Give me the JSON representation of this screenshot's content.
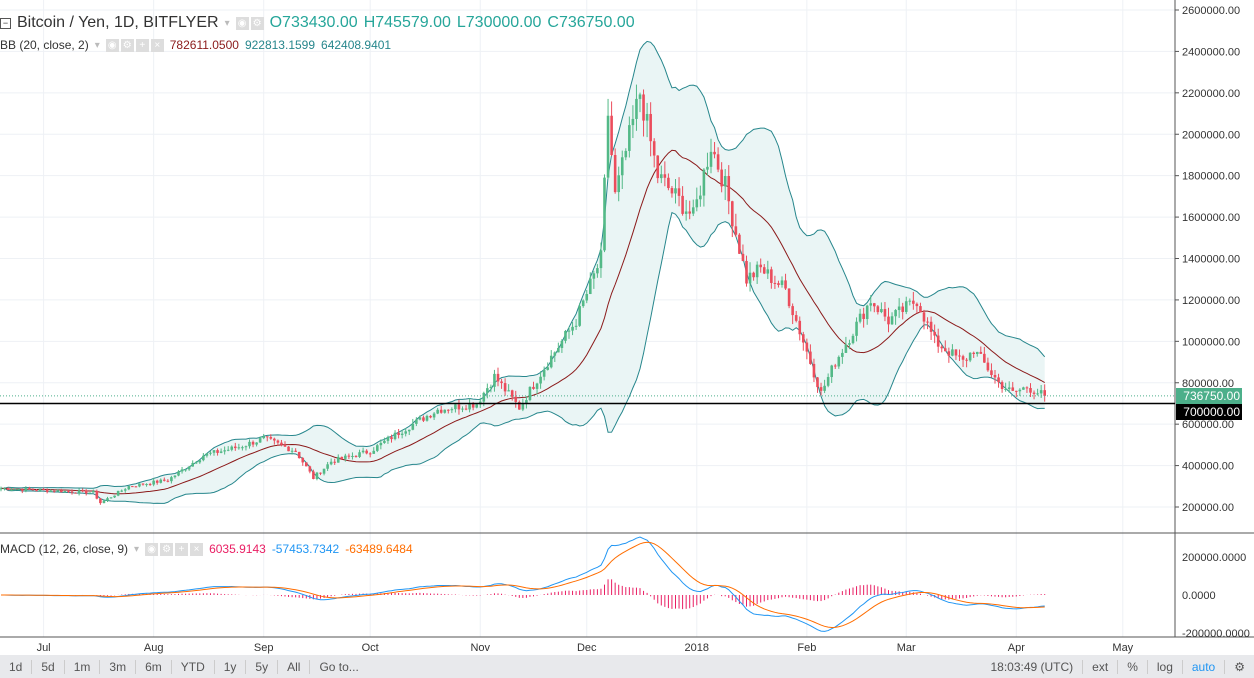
{
  "header": {
    "title": "Bitcoin / Yen, 1D, BITFLYER",
    "o": "O733430.00",
    "h": "H745579.00",
    "l": "L730000.00",
    "c": "C736750.00"
  },
  "bb": {
    "label": "BB (20, close, 2)",
    "basis": "782611.0500",
    "upper": "922813.1599",
    "lower": "642408.9401"
  },
  "macd": {
    "label": "MACD (12, 26, close, 9)",
    "hist": "6035.9143",
    "macd": "-57453.7342",
    "signal": "-63489.6484"
  },
  "price_labels": {
    "last": "736750.00",
    "line": "700000.00"
  },
  "toolbar": {
    "ranges": [
      "1d",
      "5d",
      "1m",
      "3m",
      "6m",
      "YTD",
      "1y",
      "5y",
      "All",
      "Go to..."
    ],
    "time": "18:03:49 (UTC)",
    "right": [
      "ext",
      "%",
      "log",
      "auto"
    ]
  },
  "colors": {
    "up": "#53b987",
    "down": "#eb4d5c",
    "bb_band": "#26868c",
    "bb_basis": "#8b1a1a",
    "bb_fill": "#eaf5f5",
    "macd": "#2196f3",
    "signal": "#ff6d00",
    "hist": "#e91e63"
  },
  "chart_data": {
    "type": "candlestick",
    "title": "Bitcoin / Yen, 1D, BITFLYER",
    "start_date": "2017-06-19",
    "close_anchors": [
      [
        0,
        290000
      ],
      [
        26,
        270000
      ],
      [
        28,
        220000
      ],
      [
        36,
        300000
      ],
      [
        47,
        330000
      ],
      [
        57,
        450000
      ],
      [
        67,
        490000
      ],
      [
        74,
        530000
      ],
      [
        83,
        470000
      ],
      [
        88,
        340000
      ],
      [
        93,
        420000
      ],
      [
        104,
        470000
      ],
      [
        113,
        570000
      ],
      [
        123,
        670000
      ],
      [
        134,
        700000
      ],
      [
        139,
        830000
      ],
      [
        146,
        680000
      ],
      [
        154,
        900000
      ],
      [
        162,
        1100000
      ],
      [
        169,
        1400000
      ],
      [
        171,
        2100000
      ],
      [
        173,
        1700000
      ],
      [
        180,
        2200000
      ],
      [
        185,
        1800000
      ],
      [
        190,
        1700000
      ],
      [
        195,
        1600000
      ],
      [
        200,
        1950000
      ],
      [
        204,
        1750000
      ],
      [
        210,
        1300000
      ],
      [
        214,
        1350000
      ],
      [
        221,
        1250000
      ],
      [
        226,
        1000000
      ],
      [
        231,
        750000
      ],
      [
        235,
        900000
      ],
      [
        245,
        1200000
      ],
      [
        250,
        1100000
      ],
      [
        258,
        1200000
      ],
      [
        263,
        1000000
      ],
      [
        271,
        900000
      ],
      [
        274,
        960000
      ],
      [
        281,
        800000
      ],
      [
        285,
        750000
      ],
      [
        289,
        780000
      ],
      [
        294,
        736750
      ]
    ],
    "price_axis": {
      "min": 200000,
      "max": 2600000,
      "ticks": [
        200000,
        400000,
        600000,
        800000,
        1000000,
        1200000,
        1400000,
        1600000,
        1800000,
        2000000,
        2200000,
        2400000,
        2600000
      ],
      "tick_labels": [
        "200000.00",
        "400000.00",
        "600000.00",
        "800000.00",
        "1000000.00",
        "1200000.00",
        "1400000.00",
        "1600000.00",
        "1800000.00",
        "2000000.00",
        "2200000.00",
        "2400000.00",
        "2600000.00"
      ]
    },
    "macd_axis": {
      "ticks": [
        200000,
        0,
        -200000
      ],
      "tick_labels": [
        "200000.0000",
        "0.0000",
        "-200000.0000"
      ]
    },
    "x_axis": {
      "labels": [
        "Jul",
        "Aug",
        "Sep",
        "Oct",
        "Nov",
        "Dec",
        "2018",
        "Feb",
        "Mar",
        "Apr",
        "May"
      ],
      "label_days": [
        12,
        43,
        74,
        104,
        135,
        165,
        196,
        227,
        255,
        286,
        316
      ]
    }
  }
}
